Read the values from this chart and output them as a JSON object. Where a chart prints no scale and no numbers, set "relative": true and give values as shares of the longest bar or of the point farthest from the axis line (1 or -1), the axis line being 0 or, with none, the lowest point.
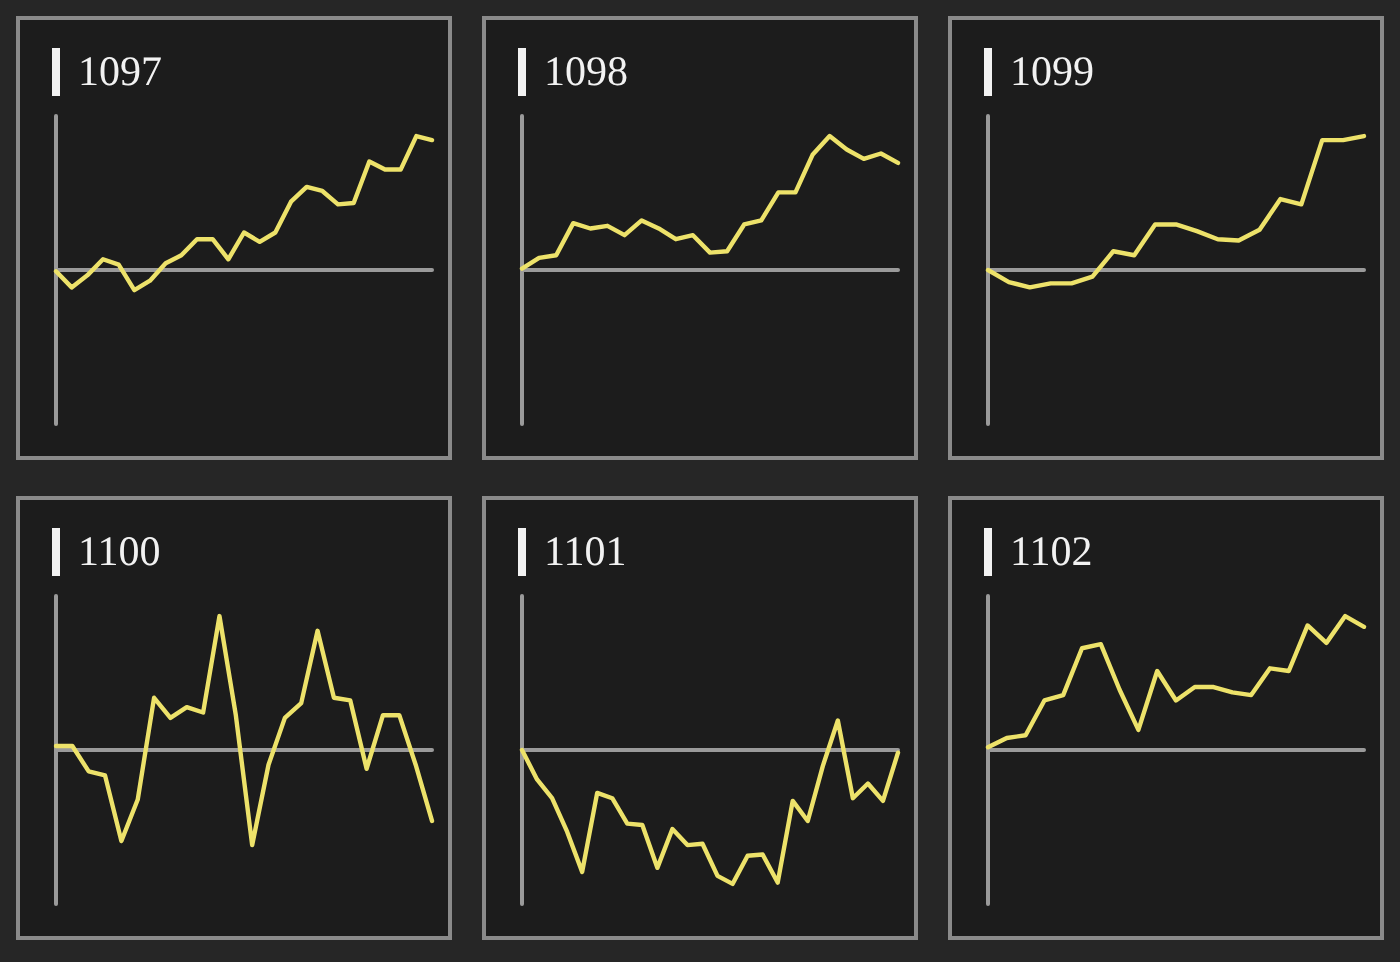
{
  "chart_data": [
    {
      "type": "line",
      "title": "1097",
      "relative": true,
      "categories": [
        null,
        null,
        null,
        null,
        null,
        null,
        null,
        null,
        null,
        null,
        null,
        null,
        null,
        null,
        null,
        null,
        null,
        null,
        null,
        null,
        null,
        null,
        null,
        null,
        null
      ],
      "series": [
        {
          "color": "#ede26a",
          "values": [
            -0.01,
            -0.13,
            -0.04,
            0.08,
            0.04,
            -0.15,
            -0.08,
            0.05,
            0.11,
            0.23,
            0.23,
            0.08,
            0.28,
            0.21,
            0.28,
            0.51,
            0.62,
            0.59,
            0.49,
            0.5,
            0.81,
            0.75,
            0.75,
            1.0,
            0.97
          ]
        }
      ]
    },
    {
      "type": "line",
      "title": "1098",
      "relative": true,
      "categories": [
        null,
        null,
        null,
        null,
        null,
        null,
        null,
        null,
        null,
        null,
        null,
        null,
        null,
        null,
        null,
        null,
        null,
        null,
        null,
        null,
        null,
        null,
        null
      ],
      "series": [
        {
          "color": "#ede26a",
          "values": [
            0.01,
            0.09,
            0.11,
            0.35,
            0.31,
            0.33,
            0.26,
            0.37,
            0.31,
            0.23,
            0.26,
            0.13,
            0.14,
            0.34,
            0.37,
            0.58,
            0.58,
            0.86,
            1.0,
            0.9,
            0.83,
            0.87,
            0.8
          ]
        }
      ]
    },
    {
      "type": "line",
      "title": "1099",
      "relative": true,
      "categories": [
        null,
        null,
        null,
        null,
        null,
        null,
        null,
        null,
        null,
        null,
        null,
        null,
        null,
        null,
        null,
        null,
        null,
        null,
        null
      ],
      "series": [
        {
          "color": "#ede26a",
          "values": [
            0,
            -0.09,
            -0.13,
            -0.1,
            -0.1,
            -0.05,
            0.14,
            0.11,
            0.34,
            0.34,
            0.29,
            0.23,
            0.22,
            0.3,
            0.53,
            0.49,
            0.97,
            0.97,
            1.0
          ]
        }
      ]
    },
    {
      "type": "line",
      "title": "1100",
      "relative": true,
      "categories": [
        null,
        null,
        null,
        null,
        null,
        null,
        null,
        null,
        null,
        null,
        null,
        null,
        null,
        null,
        null,
        null,
        null,
        null,
        null,
        null,
        null,
        null,
        null,
        null
      ],
      "series": [
        {
          "color": "#ede26a",
          "values": [
            0.03,
            0.03,
            -0.16,
            -0.19,
            -0.68,
            -0.37,
            0.39,
            0.24,
            0.32,
            0.28,
            1.0,
            0.26,
            -0.71,
            -0.11,
            0.24,
            0.35,
            0.89,
            0.39,
            0.37,
            -0.14,
            0.26,
            0.26,
            -0.11,
            -0.53
          ]
        }
      ]
    },
    {
      "type": "line",
      "title": "1101",
      "relative": true,
      "categories": [
        null,
        null,
        null,
        null,
        null,
        null,
        null,
        null,
        null,
        null,
        null,
        null,
        null,
        null,
        null,
        null,
        null,
        null,
        null,
        null,
        null,
        null,
        null,
        null,
        null,
        null
      ],
      "series": [
        {
          "color": "#ede26a",
          "values": [
            0,
            -0.22,
            -0.36,
            -0.61,
            -0.91,
            -0.32,
            -0.36,
            -0.55,
            -0.56,
            -0.88,
            -0.59,
            -0.71,
            -0.7,
            -0.94,
            -1.0,
            -0.79,
            -0.78,
            -0.99,
            -0.38,
            -0.53,
            -0.12,
            0.22,
            -0.36,
            -0.25,
            -0.38,
            -0.02
          ]
        }
      ]
    },
    {
      "type": "line",
      "title": "1102",
      "relative": true,
      "categories": [
        null,
        null,
        null,
        null,
        null,
        null,
        null,
        null,
        null,
        null,
        null,
        null,
        null,
        null,
        null,
        null,
        null,
        null,
        null,
        null,
        null
      ],
      "series": [
        {
          "color": "#ede26a",
          "values": [
            0.02,
            0.09,
            0.11,
            0.37,
            0.41,
            0.76,
            0.79,
            0.45,
            0.15,
            0.59,
            0.37,
            0.47,
            0.47,
            0.43,
            0.41,
            0.61,
            0.59,
            0.93,
            0.8,
            1.0,
            0.92
          ]
        }
      ]
    }
  ]
}
